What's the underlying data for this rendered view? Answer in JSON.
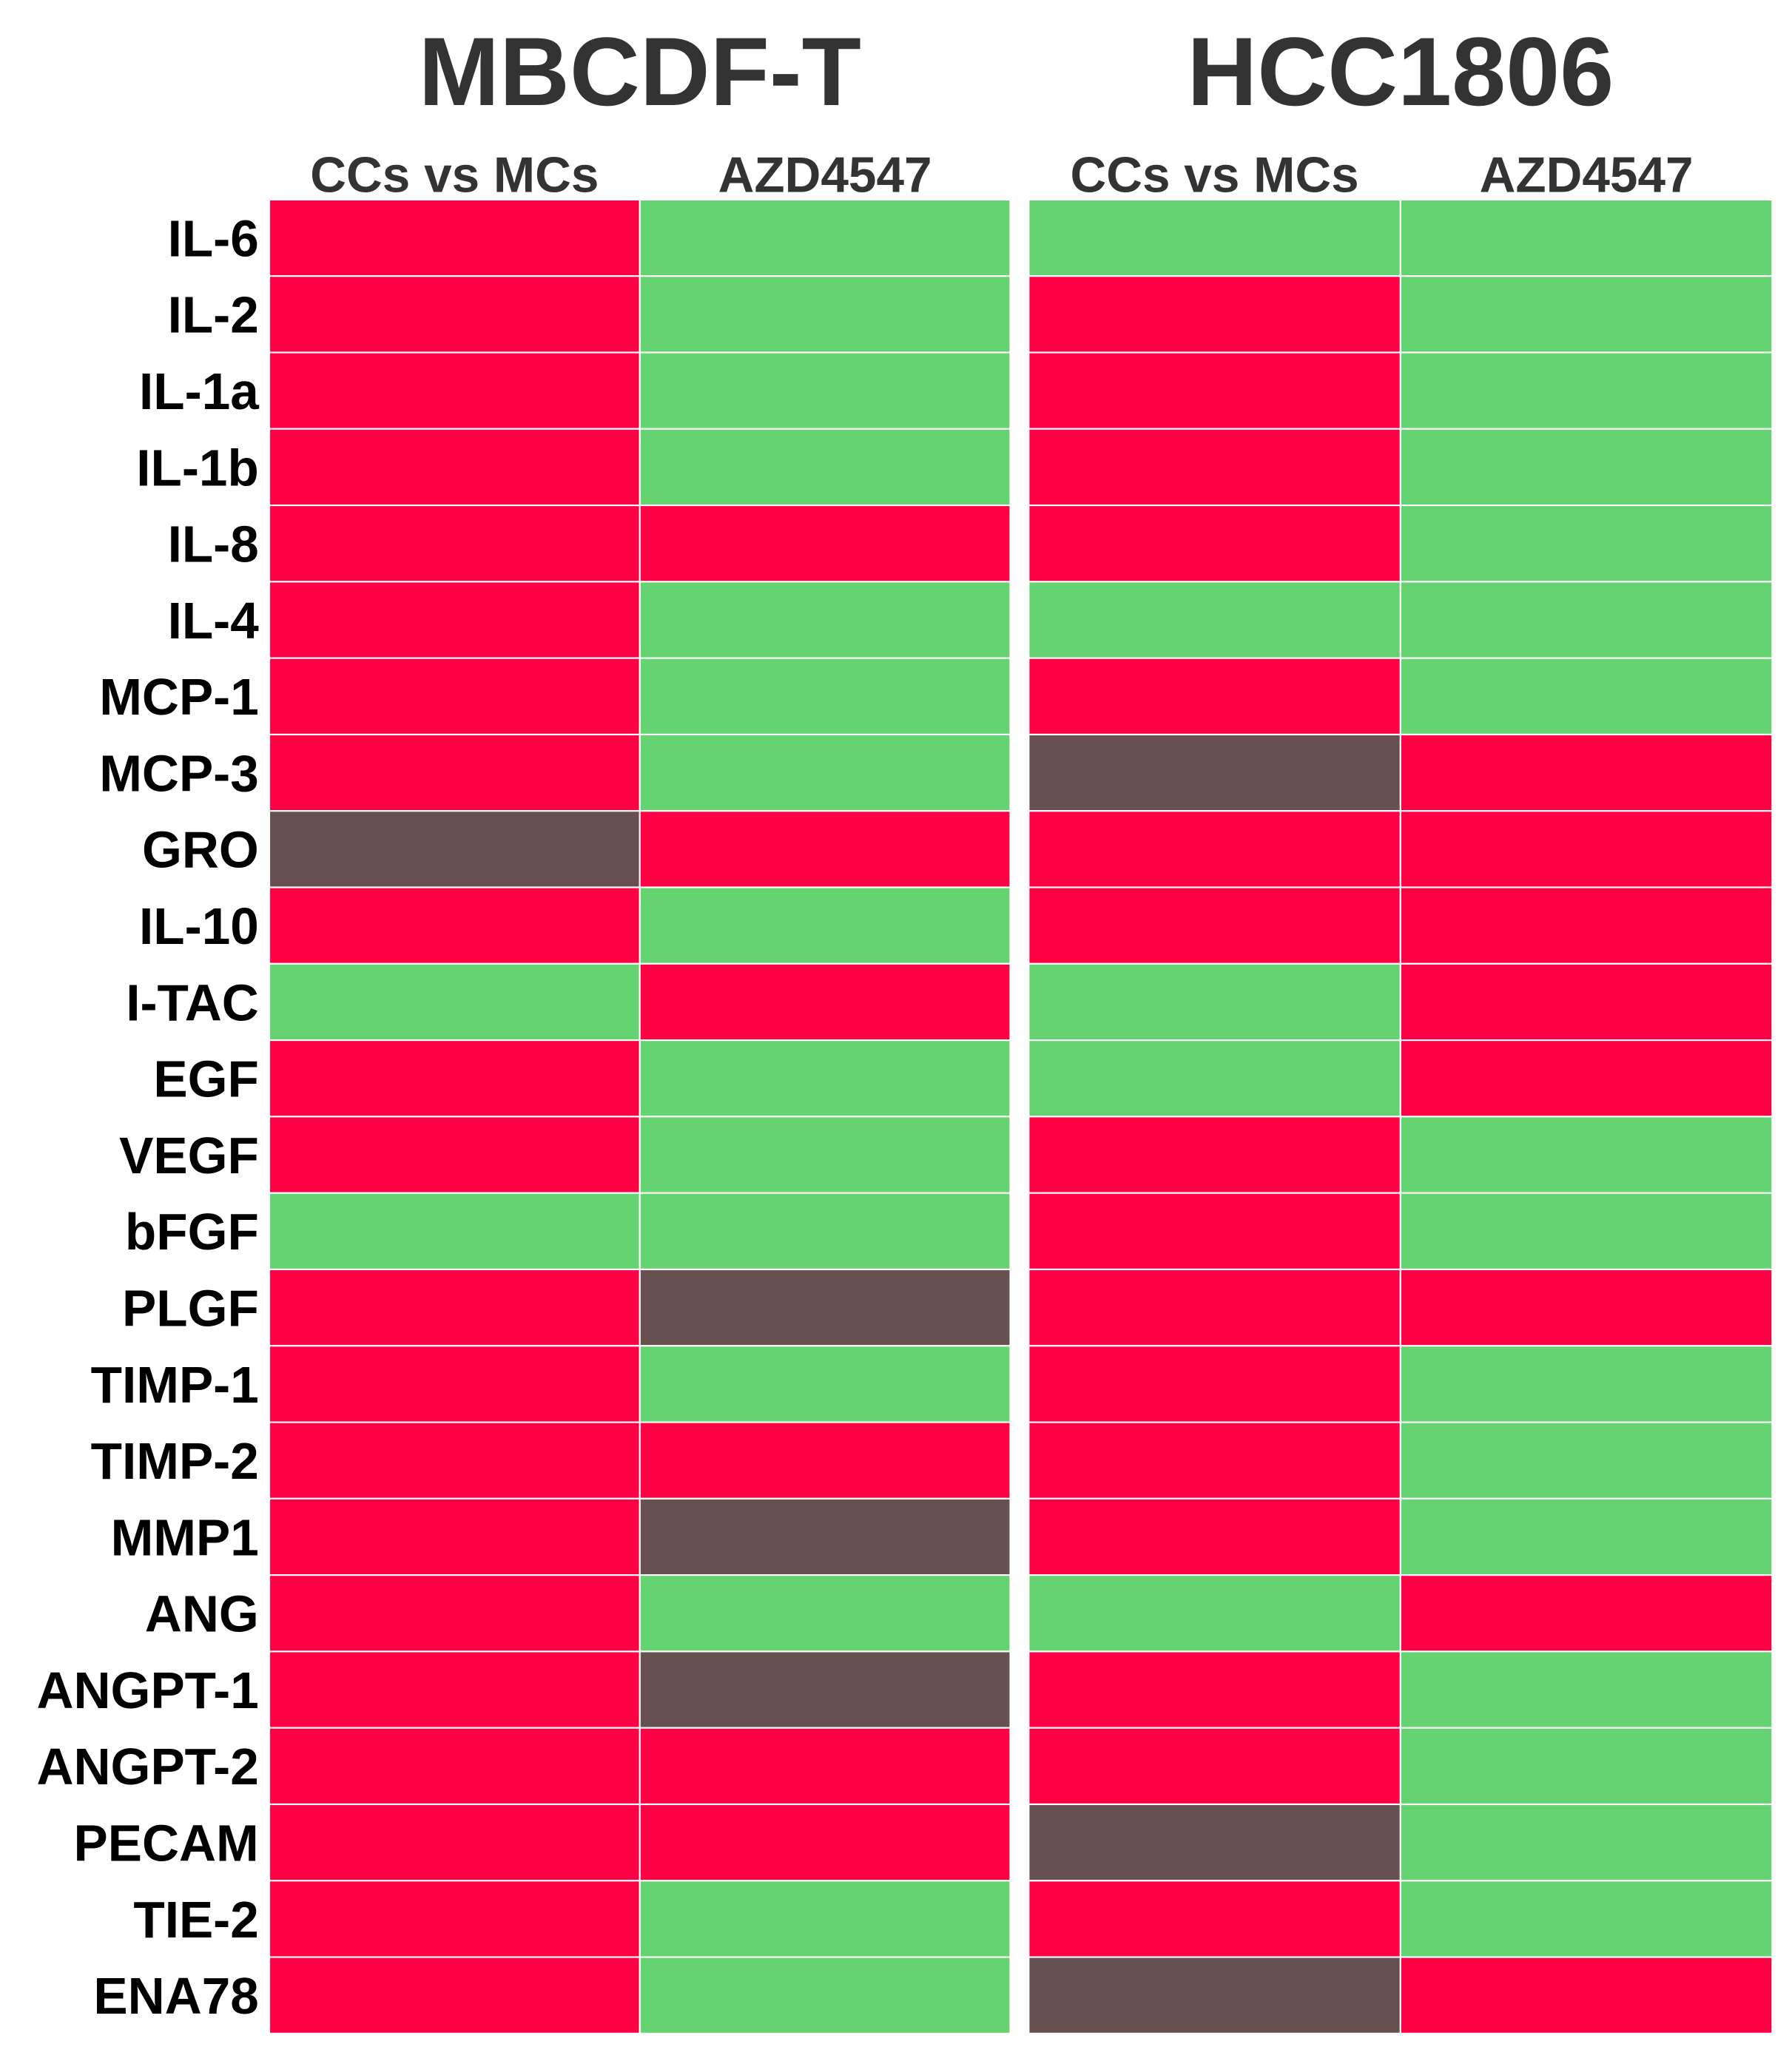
{
  "chart_data": {
    "type": "heatmap",
    "groups": [
      {
        "title": "MBCDF-T",
        "columns": [
          "CCs vs MCs",
          "AZD4547"
        ]
      },
      {
        "title": "HCC1806",
        "columns": [
          "CCs vs MCs",
          "AZD4547"
        ]
      }
    ],
    "rows": [
      "IL-6",
      "IL-2",
      "IL-1a",
      "IL-1b",
      "IL-8",
      "IL-4",
      "MCP-1",
      "MCP-3",
      "GRO",
      "IL-10",
      "I-TAC",
      "EGF",
      "VEGF",
      "bFGF",
      "PLGF",
      "TIMP-1",
      "TIMP-2",
      "MMP1",
      "ANG",
      "ANGPT-1",
      "ANGPT-2",
      "PECAM",
      "TIE-2",
      "ENA78"
    ],
    "categories": [
      "red",
      "green",
      "gray"
    ],
    "colors": {
      "red": "#ff0044",
      "green": "#66d373",
      "gray": "#665050",
      "grid": "#ffffff"
    },
    "values": [
      [
        "red",
        "green",
        "green",
        "green"
      ],
      [
        "red",
        "green",
        "red",
        "green"
      ],
      [
        "red",
        "green",
        "red",
        "green"
      ],
      [
        "red",
        "green",
        "red",
        "green"
      ],
      [
        "red",
        "red",
        "red",
        "green"
      ],
      [
        "red",
        "green",
        "green",
        "green"
      ],
      [
        "red",
        "green",
        "red",
        "green"
      ],
      [
        "red",
        "green",
        "gray",
        "red"
      ],
      [
        "gray",
        "red",
        "red",
        "red"
      ],
      [
        "red",
        "green",
        "red",
        "red"
      ],
      [
        "green",
        "red",
        "green",
        "red"
      ],
      [
        "red",
        "green",
        "green",
        "red"
      ],
      [
        "red",
        "green",
        "red",
        "green"
      ],
      [
        "green",
        "green",
        "red",
        "green"
      ],
      [
        "red",
        "gray",
        "red",
        "red"
      ],
      [
        "red",
        "green",
        "red",
        "green"
      ],
      [
        "red",
        "red",
        "red",
        "green"
      ],
      [
        "red",
        "gray",
        "red",
        "green"
      ],
      [
        "red",
        "green",
        "green",
        "red"
      ],
      [
        "red",
        "gray",
        "red",
        "green"
      ],
      [
        "red",
        "red",
        "red",
        "green"
      ],
      [
        "red",
        "red",
        "gray",
        "green"
      ],
      [
        "red",
        "green",
        "red",
        "green"
      ],
      [
        "red",
        "green",
        "gray",
        "red"
      ]
    ]
  }
}
